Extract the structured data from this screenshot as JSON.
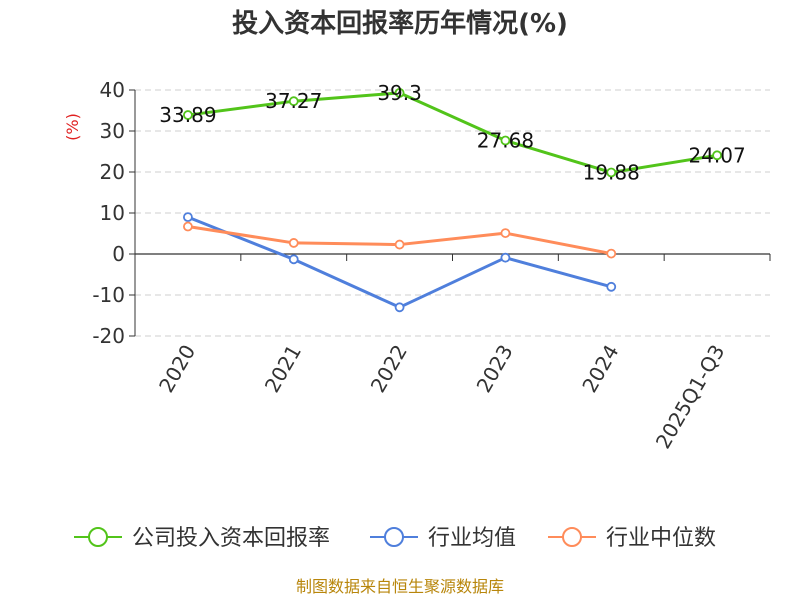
{
  "chart_data": {
    "type": "line",
    "title": "投入资本回报率历年情况(%)",
    "ylabel": "(%)",
    "categories": [
      "2020",
      "2021",
      "2022",
      "2023",
      "2024",
      "2025Q1-Q3"
    ],
    "ylim": [
      -20,
      40
    ],
    "yticks": [
      40,
      30,
      20,
      10,
      0,
      -10,
      -20
    ],
    "grid": true,
    "legend_position": "bottom",
    "series": [
      {
        "name": "公司投入资本回报率",
        "color": "#52c41a",
        "values": [
          33.89,
          37.27,
          39.3,
          27.68,
          19.88,
          24.07
        ],
        "labels": [
          "33.89",
          "37.27",
          "39.3",
          "27.68",
          "19.88",
          "24.07"
        ]
      },
      {
        "name": "行业均值",
        "color": "#4f7fdc",
        "values": [
          9.0,
          -1.3,
          -13.0,
          -0.9,
          -8.0,
          null
        ]
      },
      {
        "name": "行业中位数",
        "color": "#ff8c5a",
        "values": [
          6.7,
          2.7,
          2.3,
          5.1,
          0.1,
          null
        ]
      }
    ]
  },
  "source": "制图数据来自恒生聚源数据库"
}
